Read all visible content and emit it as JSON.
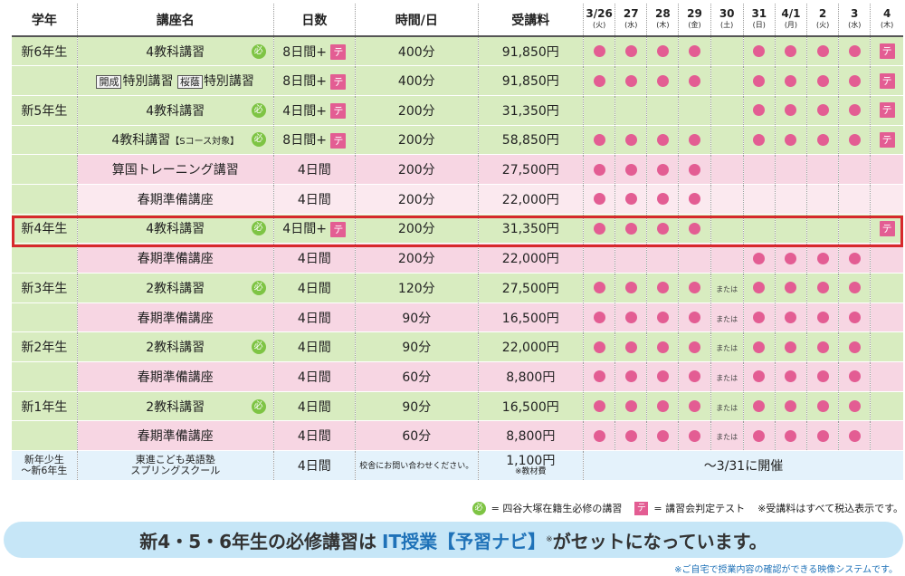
{
  "headers": {
    "grade": "学年",
    "course": "講座名",
    "days": "日数",
    "time": "時間/日",
    "fee": "受講料",
    "dates": [
      {
        "num": "3/26",
        "dow": "(火)"
      },
      {
        "num": "27",
        "dow": "(水)"
      },
      {
        "num": "28",
        "dow": "(木)"
      },
      {
        "num": "29",
        "dow": "(金)"
      },
      {
        "num": "30",
        "dow": "(土)"
      },
      {
        "num": "31",
        "dow": "(日)"
      },
      {
        "num": "4/1",
        "dow": "(月)"
      },
      {
        "num": "2",
        "dow": "(火)"
      },
      {
        "num": "3",
        "dow": "(水)"
      },
      {
        "num": "4",
        "dow": "(木)"
      }
    ]
  },
  "rows": [
    {
      "grade": "新6年生",
      "course": "4教科講習",
      "days": "8日間+",
      "time": "400分",
      "fee": "91,850円"
    },
    {
      "course_a_tag": "開成",
      "course_a": "特別講習",
      "course_b_tag": "桜蔭",
      "course_b": "特別講習",
      "days": "8日間+",
      "time": "400分",
      "fee": "91,850円"
    },
    {
      "grade": "新5年生",
      "course": "4教科講習",
      "days": "4日間+",
      "time": "200分",
      "fee": "31,350円"
    },
    {
      "course": "4教科講習",
      "course_tag": "【Sコース対象】",
      "days": "8日間+",
      "time": "200分",
      "fee": "58,850円"
    },
    {
      "course": "算国トレーニング講習",
      "days": "4日間",
      "time": "200分",
      "fee": "27,500円"
    },
    {
      "course": "春期準備講座",
      "days": "4日間",
      "time": "200分",
      "fee": "22,000円"
    },
    {
      "grade": "新4年生",
      "course": "4教科講習",
      "days": "4日間+",
      "time": "200分",
      "fee": "31,350円"
    },
    {
      "course": "春期準備講座",
      "days": "4日間",
      "time": "200分",
      "fee": "22,000円"
    },
    {
      "grade": "新3年生",
      "course": "2教科講習",
      "days": "4日間",
      "time": "120分",
      "fee": "27,500円"
    },
    {
      "course": "春期準備講座",
      "days": "4日間",
      "time": "90分",
      "fee": "16,500円"
    },
    {
      "grade": "新2年生",
      "course": "2教科講習",
      "days": "4日間",
      "time": "90分",
      "fee": "22,000円"
    },
    {
      "course": "春期準備講座",
      "days": "4日間",
      "time": "60分",
      "fee": "8,800円"
    },
    {
      "grade": "新1年生",
      "course": "2教科講習",
      "days": "4日間",
      "time": "90分",
      "fee": "16,500円"
    },
    {
      "course": "春期準備講座",
      "days": "4日間",
      "time": "60分",
      "fee": "8,800円"
    },
    {
      "grade_line1": "新年少生",
      "grade_line2": "〜新6年生",
      "course_line1": "東進こども英語塾",
      "course_line2": "スプリングスクール",
      "days": "4日間",
      "time": "校舎にお問い合わせください。",
      "fee": "1,100円",
      "fee_note": "※教材費",
      "dates_note": "〜3/31に開催"
    }
  ],
  "symbols": {
    "hitsu": "必",
    "te": "テ",
    "mataha": "または"
  },
  "legend": {
    "hitsu_text": "= 四谷大塚在籍生必修の講習",
    "te_text": "= 講習会判定テスト",
    "tax_note": "※受講料はすべて税込表示です。"
  },
  "banner": {
    "part1": "新4・5・6年生の必修講習は",
    "part2": "IT授業【予習ナビ】",
    "mark": "※",
    "part3": "がセットになっています。"
  },
  "footnote": "※ご自宅で授業内容の確認ができる映像システムです。",
  "colors": {
    "dot": "#e35d93",
    "hitsu": "#7ec444",
    "highlight": "#d7282c",
    "green_row": "#d8ecc0",
    "pink_row": "#f7d6e3",
    "banner_bg": "#c6e6f7",
    "banner_accent": "#1f72b8"
  }
}
